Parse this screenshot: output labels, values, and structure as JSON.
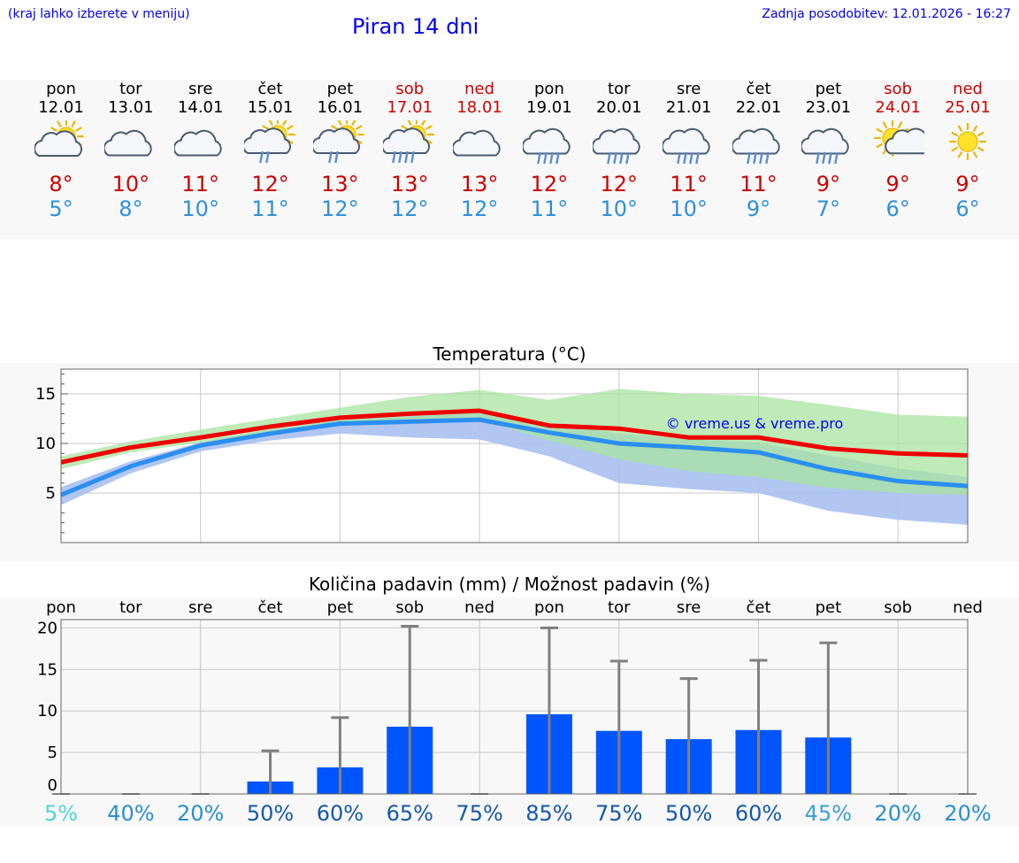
{
  "header": {
    "hint": "(kraj lahko izberete v meniju)",
    "title": "Piran 14 dni",
    "updated": "Zadnja posodobitev: 12.01.2026 - 16:27"
  },
  "days": [
    {
      "name": "pon",
      "date": "12.01",
      "icon": "sun-cloud-icon",
      "max": "8°",
      "min": "5°",
      "weekend": false
    },
    {
      "name": "tor",
      "date": "13.01",
      "icon": "cloud-icon",
      "max": "10°",
      "min": "8°",
      "weekend": false
    },
    {
      "name": "sre",
      "date": "14.01",
      "icon": "cloud-icon",
      "max": "11°",
      "min": "10°",
      "weekend": false
    },
    {
      "name": "čet",
      "date": "15.01",
      "icon": "sun-cloud-light-rain-icon",
      "max": "12°",
      "min": "11°",
      "weekend": false
    },
    {
      "name": "pet",
      "date": "16.01",
      "icon": "sun-cloud-light-rain-icon",
      "max": "13°",
      "min": "12°",
      "weekend": false
    },
    {
      "name": "sob",
      "date": "17.01",
      "icon": "sun-cloud-rain-icon",
      "max": "13°",
      "min": "12°",
      "weekend": true
    },
    {
      "name": "ned",
      "date": "18.01",
      "icon": "cloud-icon",
      "max": "13°",
      "min": "12°",
      "weekend": true
    },
    {
      "name": "pon",
      "date": "19.01",
      "icon": "cloud-rain-icon",
      "max": "12°",
      "min": "11°",
      "weekend": false
    },
    {
      "name": "tor",
      "date": "20.01",
      "icon": "cloud-rain-icon",
      "max": "12°",
      "min": "10°",
      "weekend": false
    },
    {
      "name": "sre",
      "date": "21.01",
      "icon": "cloud-rain-icon",
      "max": "11°",
      "min": "10°",
      "weekend": false
    },
    {
      "name": "čet",
      "date": "22.01",
      "icon": "cloud-rain-icon",
      "max": "11°",
      "min": "9°",
      "weekend": false
    },
    {
      "name": "pet",
      "date": "23.01",
      "icon": "cloud-rain-icon",
      "max": "9°",
      "min": "7°",
      "weekend": false
    },
    {
      "name": "sob",
      "date": "24.01",
      "icon": "sun-small-cloud-icon",
      "max": "9°",
      "min": "6°",
      "weekend": true
    },
    {
      "name": "ned",
      "date": "25.01",
      "icon": "sun-icon",
      "max": "9°",
      "min": "6°",
      "weekend": true
    }
  ],
  "colors": {
    "link": "#0000ee",
    "max_temp": "#cc0000",
    "min_temp": "#2f8fdc",
    "max_line": "#ee0000",
    "min_line": "#2a8ff0",
    "max_band": "#a8e4a0",
    "min_band": "#a8c0f0",
    "bar": "#0055ff",
    "whisker": "#808080"
  },
  "chart_data": [
    {
      "type": "line",
      "title": "Temperatura (°C)",
      "watermark": "© vreme.us & vreme.pro",
      "ylim": [
        0,
        17.5
      ],
      "yticks": [
        "5",
        "10",
        "15"
      ],
      "categories": [
        "pon",
        "tor",
        "sre",
        "čet",
        "pet",
        "sob",
        "ned",
        "pon",
        "tor",
        "sre",
        "čet",
        "pet",
        "sob",
        "ned"
      ],
      "series": [
        {
          "name": "max",
          "values": [
            8.1,
            9.6,
            10.6,
            11.7,
            12.6,
            13.0,
            13.3,
            11.8,
            11.5,
            10.6,
            10.6,
            9.5,
            9.0,
            8.8
          ]
        },
        {
          "name": "min",
          "values": [
            4.8,
            7.7,
            9.8,
            11.0,
            12.0,
            12.2,
            12.4,
            11.1,
            10.0,
            9.6,
            9.1,
            7.4,
            6.2,
            5.7
          ]
        }
      ],
      "bands": [
        {
          "name": "max-range",
          "upper": [
            8.7,
            10.2,
            11.4,
            12.5,
            13.6,
            14.7,
            15.4,
            14.4,
            15.5,
            15.0,
            14.8,
            13.9,
            12.9,
            12.7
          ],
          "lower": [
            7.4,
            9.1,
            10.1,
            11.0,
            11.8,
            12.3,
            12.4,
            10.3,
            8.4,
            7.2,
            6.6,
            5.5,
            5.0,
            4.8
          ]
        },
        {
          "name": "min-range",
          "upper": [
            5.6,
            8.2,
            10.1,
            11.4,
            12.4,
            12.8,
            13.2,
            12.0,
            11.0,
            10.4,
            10.1,
            8.8,
            7.5,
            6.6
          ],
          "lower": [
            3.8,
            7.0,
            9.2,
            10.3,
            11.0,
            10.6,
            10.4,
            8.7,
            6.0,
            5.4,
            5.0,
            3.2,
            2.3,
            1.8
          ]
        }
      ]
    },
    {
      "type": "bar",
      "title": "Količina padavin (mm) / Možnost padavin (%)",
      "ylim": [
        0,
        21
      ],
      "yticks": [
        "0",
        "5",
        "10",
        "15",
        "20"
      ],
      "categories": [
        "pon",
        "tor",
        "sre",
        "čet",
        "pet",
        "sob",
        "ned",
        "pon",
        "tor",
        "sre",
        "čet",
        "pet",
        "sob",
        "ned"
      ],
      "values": [
        0,
        0,
        0,
        1.5,
        3.2,
        8.1,
        0,
        9.6,
        7.6,
        6.6,
        7.7,
        6.8,
        0,
        0
      ],
      "error_max": [
        0,
        0,
        0,
        5.2,
        9.2,
        20.2,
        0,
        20.0,
        16.0,
        13.9,
        16.1,
        18.2,
        0,
        0
      ],
      "probability": [
        "5%",
        "40%",
        "20%",
        "50%",
        "60%",
        "65%",
        "75%",
        "85%",
        "75%",
        "50%",
        "60%",
        "45%",
        "20%",
        "20%"
      ],
      "probability_colors": [
        "#55d0e0",
        "#2a8fd0",
        "#2a8fd0",
        "#1558a8",
        "#1558a8",
        "#1558a8",
        "#1558a8",
        "#1558a8",
        "#1558a8",
        "#1558a8",
        "#1558a8",
        "#3aa0d8",
        "#2a8fd0",
        "#2a8fd0"
      ]
    }
  ]
}
